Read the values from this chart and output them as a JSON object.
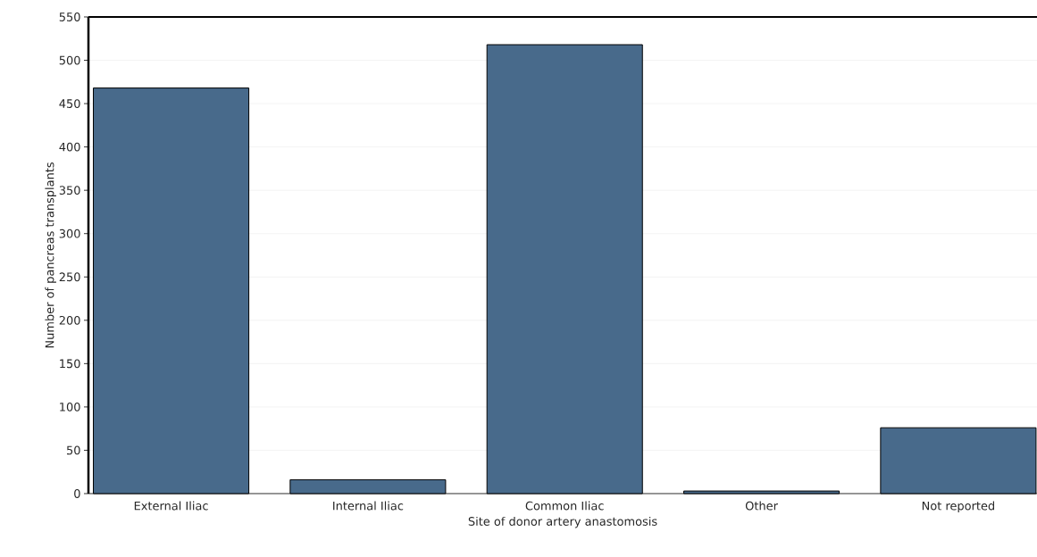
{
  "chart_data": {
    "type": "bar",
    "xlabel": "Site of donor artery anastomosis",
    "ylabel": "Number of pancreas transplants",
    "categories": [
      "External Iliac",
      "Internal Iliac",
      "Common Iliac",
      "Other",
      "Not reported"
    ],
    "values": [
      468,
      16,
      518,
      3,
      76
    ],
    "color": "#486a8b",
    "ylim": [
      0,
      550
    ],
    "yticks": [
      0,
      50,
      100,
      150,
      200,
      250,
      300,
      350,
      400,
      450,
      500,
      550
    ],
    "grid": "y"
  }
}
